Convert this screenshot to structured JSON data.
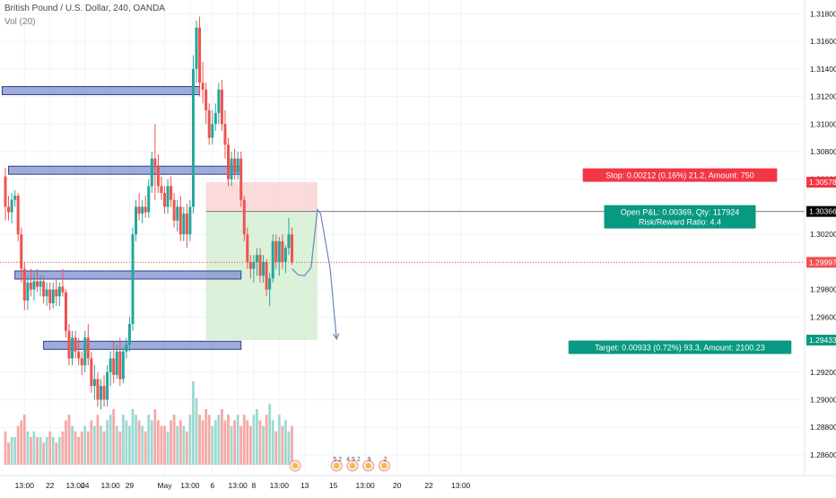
{
  "header": {
    "title": "British Pound / U.S. Dollar, 240, OANDA",
    "indicator": "Vol (20)"
  },
  "colors": {
    "up": "#26a69a",
    "down": "#ef5350",
    "vol_up": "#9ed9d2",
    "vol_down": "#f6a9a6",
    "zone_fill": "#7f8fcc",
    "zone_stroke": "#2c3f95",
    "stop_fill": "#f9d6d6",
    "target_fill": "#d7efd5",
    "arrow": "#6b86c4",
    "current_price": "#ef5350",
    "stop_label": "#f23645",
    "target_label": "#089981",
    "entry_label": "#000000"
  },
  "chart_data": {
    "type": "candlestick",
    "title": "British Pound / U.S. Dollar, 240, OANDA",
    "ylim": [
      1.2845,
      1.319
    ],
    "price_ticks": [
      "1.31800",
      "1.31600",
      "1.31400",
      "1.31200",
      "1.31000",
      "1.30800",
      "1.30600",
      "1.30200",
      "1.30000",
      "1.29800",
      "1.29600",
      "1.29200",
      "1.29000",
      "1.28800",
      "1.28600"
    ],
    "x_ticks": [
      "13:00",
      "22",
      "13:00",
      "24",
      "13:00",
      "29",
      "May",
      "13:00",
      "6",
      "13:00",
      "8",
      "13:00",
      "13",
      "15",
      "13:00",
      "20",
      "22",
      "13:00"
    ],
    "x_tick_index": [
      6,
      14,
      22,
      25,
      33,
      39,
      50,
      58,
      65,
      73,
      78,
      86,
      94,
      103,
      113,
      123,
      133,
      143
    ],
    "candles": [
      [
        1.3062,
        1.3068,
        1.303,
        1.304
      ],
      [
        1.304,
        1.3048,
        1.303,
        1.3036
      ],
      [
        1.3036,
        1.305,
        1.3028,
        1.3045
      ],
      [
        1.3045,
        1.3052,
        1.304,
        1.3048
      ],
      [
        1.3048,
        1.305,
        1.3015,
        1.302
      ],
      [
        1.302,
        1.3025,
        1.2985,
        1.2995
      ],
      [
        1.2995,
        1.3,
        1.2965,
        1.2972
      ],
      [
        1.2972,
        1.299,
        1.2965,
        1.2985
      ],
      [
        1.2985,
        1.2995,
        1.2975,
        1.298
      ],
      [
        1.298,
        1.2992,
        1.2972,
        1.2986
      ],
      [
        1.2986,
        1.2995,
        1.2978,
        1.2982
      ],
      [
        1.2982,
        1.299,
        1.2975,
        1.2986
      ],
      [
        1.2986,
        1.299,
        1.297,
        1.2975
      ],
      [
        1.2975,
        1.2985,
        1.2968,
        1.298
      ],
      [
        1.298,
        1.2985,
        1.2965,
        1.297
      ],
      [
        1.297,
        1.2985,
        1.2966,
        1.298
      ],
      [
        1.298,
        1.2988,
        1.2968,
        1.2975
      ],
      [
        1.2975,
        1.2985,
        1.2968,
        1.2982
      ],
      [
        1.2982,
        1.2995,
        1.2975,
        1.2978
      ],
      [
        1.2978,
        1.298,
        1.2945,
        1.295
      ],
      [
        1.295,
        1.2955,
        1.2925,
        1.293
      ],
      [
        1.293,
        1.295,
        1.2925,
        1.2945
      ],
      [
        1.2945,
        1.295,
        1.293,
        1.2935
      ],
      [
        1.2935,
        1.2945,
        1.2925,
        1.293
      ],
      [
        1.293,
        1.2935,
        1.2918,
        1.2925
      ],
      [
        1.2925,
        1.295,
        1.292,
        1.2945
      ],
      [
        1.2945,
        1.2955,
        1.2925,
        1.293
      ],
      [
        1.293,
        1.2935,
        1.2905,
        1.291
      ],
      [
        1.291,
        1.2925,
        1.29,
        1.2915
      ],
      [
        1.2915,
        1.292,
        1.2895,
        1.29
      ],
      [
        1.29,
        1.2915,
        1.2893,
        1.291
      ],
      [
        1.291,
        1.2918,
        1.2895,
        1.29
      ],
      [
        1.29,
        1.2925,
        1.2895,
        1.292
      ],
      [
        1.292,
        1.2935,
        1.291,
        1.293
      ],
      [
        1.293,
        1.2942,
        1.2912,
        1.2918
      ],
      [
        1.2918,
        1.294,
        1.2915,
        1.2935
      ],
      [
        1.2935,
        1.2945,
        1.291,
        1.2915
      ],
      [
        1.2915,
        1.2938,
        1.2912,
        1.2935
      ],
      [
        1.2935,
        1.2945,
        1.293,
        1.294
      ],
      [
        1.294,
        1.296,
        1.2935,
        1.2955
      ],
      [
        1.2955,
        1.3025,
        1.295,
        1.302
      ],
      [
        1.302,
        1.3045,
        1.3015,
        1.304
      ],
      [
        1.304,
        1.305,
        1.303,
        1.3035
      ],
      [
        1.3035,
        1.3045,
        1.3028,
        1.304
      ],
      [
        1.304,
        1.3048,
        1.3032,
        1.3036
      ],
      [
        1.3036,
        1.306,
        1.3032,
        1.3055
      ],
      [
        1.3055,
        1.308,
        1.305,
        1.3075
      ],
      [
        1.3075,
        1.31,
        1.3045,
        1.307
      ],
      [
        1.307,
        1.3078,
        1.305,
        1.3055
      ],
      [
        1.3055,
        1.3062,
        1.3045,
        1.305
      ],
      [
        1.305,
        1.3055,
        1.3035,
        1.304
      ],
      [
        1.304,
        1.306,
        1.3035,
        1.3055
      ],
      [
        1.3055,
        1.3062,
        1.304,
        1.3045
      ],
      [
        1.3045,
        1.305,
        1.3025,
        1.303
      ],
      [
        1.303,
        1.3045,
        1.3022,
        1.304
      ],
      [
        1.304,
        1.3048,
        1.3015,
        1.302
      ],
      [
        1.302,
        1.304,
        1.3015,
        1.3035
      ],
      [
        1.3035,
        1.3042,
        1.301,
        1.302
      ],
      [
        1.302,
        1.3045,
        1.3015,
        1.304
      ],
      [
        1.304,
        1.315,
        1.3035,
        1.314
      ],
      [
        1.314,
        1.3175,
        1.313,
        1.317
      ],
      [
        1.317,
        1.3178,
        1.312,
        1.313
      ],
      [
        1.313,
        1.3145,
        1.3115,
        1.3125
      ],
      [
        1.3125,
        1.313,
        1.31,
        1.311
      ],
      [
        1.311,
        1.3115,
        1.3085,
        1.309
      ],
      [
        1.309,
        1.311,
        1.3085,
        1.31
      ],
      [
        1.31,
        1.3115,
        1.3095,
        1.3108
      ],
      [
        1.3108,
        1.313,
        1.31,
        1.3125
      ],
      [
        1.3125,
        1.3132,
        1.3095,
        1.31
      ],
      [
        1.31,
        1.311,
        1.3075,
        1.3085
      ],
      [
        1.3085,
        1.309,
        1.3055,
        1.306
      ],
      [
        1.306,
        1.308,
        1.3055,
        1.3075
      ],
      [
        1.3075,
        1.3082,
        1.306,
        1.3065
      ],
      [
        1.3065,
        1.308,
        1.306,
        1.3075
      ],
      [
        1.3075,
        1.308,
        1.304,
        1.3045
      ],
      [
        1.3045,
        1.3048,
        1.3015,
        1.302
      ],
      [
        1.302,
        1.3025,
        1.2995,
        1.3
      ],
      [
        1.3,
        1.3005,
        1.2988,
        1.2995
      ],
      [
        1.2995,
        1.3005,
        1.2985,
        1.3
      ],
      [
        1.3,
        1.301,
        1.299,
        1.3005
      ],
      [
        1.3005,
        1.301,
        1.2985,
        1.299
      ],
      [
        1.299,
        1.3005,
        1.2985,
        1.3
      ],
      [
        1.3,
        1.3002,
        1.2975,
        1.298
      ],
      [
        1.298,
        1.2992,
        1.2968,
        1.2988
      ],
      [
        1.2988,
        1.302,
        1.2985,
        1.3015
      ],
      [
        1.3015,
        1.302,
        1.2995,
        1.3
      ],
      [
        1.3,
        1.3018,
        1.299,
        1.3015
      ],
      [
        1.3015,
        1.302,
        1.2995,
        1.3
      ],
      [
        1.3,
        1.3012,
        1.2992,
        1.301
      ],
      [
        1.301,
        1.3032,
        1.3005,
        1.302
      ],
      [
        1.302,
        1.3025,
        1.2998,
        1.3
      ]
    ],
    "volume": [
      6,
      4,
      5,
      5,
      7,
      8,
      9,
      6,
      5,
      6,
      5,
      5,
      4,
      5,
      6,
      5,
      4,
      5,
      6,
      8,
      9,
      7,
      6,
      5,
      6,
      7,
      6,
      8,
      7,
      9,
      7,
      6,
      8,
      9,
      10,
      7,
      6,
      9,
      8,
      7,
      10,
      9,
      8,
      7,
      6,
      9,
      8,
      10,
      8,
      7,
      7,
      6,
      8,
      9,
      7,
      8,
      7,
      6,
      9,
      15,
      12,
      9,
      8,
      10,
      9,
      7,
      8,
      9,
      10,
      8,
      9,
      7,
      8,
      9,
      7,
      9,
      8,
      7,
      9,
      10,
      8,
      7,
      9,
      11,
      8,
      6,
      9,
      7,
      8,
      6,
      7
    ],
    "zones": [
      {
        "y_top": 1.3126,
        "y_bottom": 1.31225,
        "x_start": -1,
        "x_end": 61
      },
      {
        "y_top": 1.3069,
        "y_bottom": 1.3064,
        "x_start": 1,
        "x_end": 74
      },
      {
        "y_top": 1.2992,
        "y_bottom": 1.2989,
        "x_start": 3,
        "x_end": 74
      },
      {
        "y_top": 1.2941,
        "y_bottom": 1.2938,
        "x_start": 12,
        "x_end": 74
      }
    ],
    "position": {
      "entry": 1.30366,
      "stop": 1.30578,
      "target": 1.29433,
      "x_start": 63,
      "x_end": 98,
      "stop_label": "Stop: 0.00212 (0.16%) 21.2, Amount: 750",
      "target_label": "Target: 0.00933 (0.72%) 93.3, Amount: 2100.23",
      "entry_label_1": "Open P&L: 0.00369, Qty: 117924",
      "entry_label_2": "Risk/Reward Ratio: 4.4"
    },
    "arrow_path": [
      [
        90,
        1.2995
      ],
      [
        92,
        1.29905
      ],
      [
        94,
        1.299
      ],
      [
        96,
        1.2996
      ],
      [
        98,
        1.3038
      ],
      [
        99,
        1.3035
      ],
      [
        102,
        1.2995
      ],
      [
        104,
        1.2944
      ]
    ],
    "current_price": 1.29997,
    "price_labels": [
      {
        "value": 1.30578,
        "text": "1.30578",
        "color": "stop"
      },
      {
        "value": 1.30366,
        "text": "1.30366",
        "color": "entry"
      },
      {
        "value": 1.29997,
        "text": "1.29997",
        "color": "current"
      },
      {
        "value": 1.29433,
        "text": "1.29433",
        "color": "target"
      }
    ],
    "events": [
      {
        "index": 91,
        "label": ""
      },
      {
        "index": 104,
        "label": "5 2"
      },
      {
        "index": 109,
        "label": "4 5 2"
      },
      {
        "index": 114,
        "label": "9"
      },
      {
        "index": 119,
        "label": "2"
      }
    ]
  }
}
